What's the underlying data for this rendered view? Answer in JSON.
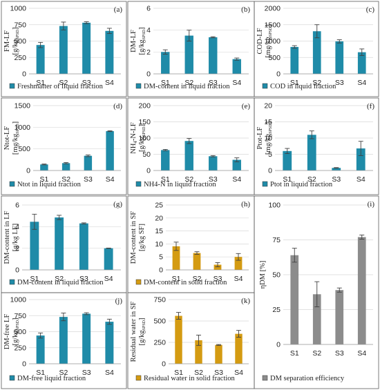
{
  "colors": {
    "teal": "#1f8ba8",
    "gold": "#d49b12",
    "gray": "#8c8c8c",
    "error": "#404040",
    "grid": "#d9d9d9",
    "frame": "#5a5a5a"
  },
  "chart_data": [
    {
      "id": "a",
      "type": "bar",
      "panel_label": "(a)",
      "categories": [
        "S1",
        "S2",
        "S3",
        "S4"
      ],
      "values": [
        440,
        730,
        780,
        655
      ],
      "errors": [
        40,
        60,
        15,
        40
      ],
      "ylabel": "FM-LF",
      "yunit": "[g/kg",
      "yunit_sub": "SPSD",
      "yunit_close": "]",
      "ylim": [
        0,
        1000
      ],
      "yticks": [
        "0",
        "250",
        "500",
        "750",
        "1000"
      ],
      "legend": "Freshmatter of liquid fraction",
      "color": "teal"
    },
    {
      "id": "b",
      "type": "bar",
      "panel_label": "(b)",
      "categories": [
        "S1",
        "S2",
        "S3",
        "S4"
      ],
      "values": [
        2.0,
        3.5,
        3.35,
        1.35
      ],
      "errors": [
        0.2,
        0.5,
        0.05,
        0.1
      ],
      "ylabel": "DM-LF",
      "yunit": "[g/kg",
      "yunit_sub": "SPSD",
      "yunit_close": "]",
      "ylim": [
        0,
        6
      ],
      "yticks": [
        "0",
        "2",
        "4",
        "6"
      ],
      "legend": "DM-content in liquid fraction",
      "color": "teal"
    },
    {
      "id": "c",
      "type": "bar",
      "panel_label": "(c)",
      "categories": [
        "S1",
        "S2",
        "S3",
        "S4"
      ],
      "values": [
        820,
        1300,
        990,
        660
      ],
      "errors": [
        40,
        200,
        50,
        100
      ],
      "ylabel": "COD-LF",
      "yunit": "[mg/kg",
      "yunit_sub": "SPSD",
      "yunit_close": "]",
      "ylim": [
        0,
        2000
      ],
      "yticks": [
        "0",
        "500",
        "1000",
        "1500",
        "2000"
      ],
      "legend": "COD in liquid fraction",
      "color": "teal"
    },
    {
      "id": "d",
      "type": "bar",
      "panel_label": "(d)",
      "categories": [
        "S1",
        "S2",
        "S3",
        "S4"
      ],
      "values": [
        140,
        170,
        340,
        910
      ],
      "errors": [
        10,
        15,
        20,
        10
      ],
      "ylabel": "Ntot-LF",
      "yunit": "[mg/kg",
      "yunit_sub": "SPSD",
      "yunit_close": "]",
      "ylim": [
        0,
        1500
      ],
      "yticks": [
        "0",
        "500",
        "1000",
        "1500"
      ],
      "legend": "Ntot in liquid fraction",
      "color": "teal"
    },
    {
      "id": "e",
      "type": "bar",
      "panel_label": "(e)",
      "categories": [
        "S1",
        "S2",
        "S3",
        "S4"
      ],
      "values": [
        63,
        91,
        44,
        33
      ],
      "errors": [
        2,
        8,
        2,
        6
      ],
      "ylabel": "NH",
      "ylabel_sub": "4",
      "ylabel_rest": "-N-LF",
      "yunit": "[g/kg",
      "yunit_sub": "SPSD",
      "yunit_close": "]",
      "ylim": [
        0,
        200
      ],
      "yticks": [
        "0",
        "50",
        "100",
        "150",
        "200"
      ],
      "legend": "NH4-N in liquid fraction",
      "color": "teal"
    },
    {
      "id": "f",
      "type": "bar",
      "panel_label": "(f)",
      "categories": [
        "S1",
        "S2",
        "S3",
        "S4"
      ],
      "values": [
        6.0,
        11.0,
        0.8,
        6.8
      ],
      "errors": [
        0.8,
        1.2,
        0.1,
        2.2
      ],
      "ylabel": "Ptot-LF",
      "yunit": "[mg/kg",
      "yunit_sub": "SPSD",
      "yunit_close": "]",
      "ylim": [
        0,
        20
      ],
      "yticks": [
        "0",
        "5",
        "10",
        "15",
        "20"
      ],
      "legend": "Ptot in liquid fraction",
      "color": "teal"
    },
    {
      "id": "g",
      "type": "bar",
      "panel_label": "(g)",
      "categories": [
        "S1",
        "S2",
        "S3",
        "S4"
      ],
      "values": [
        4.45,
        4.85,
        4.3,
        2.0
      ],
      "errors": [
        0.7,
        0.2,
        0.05,
        0.02
      ],
      "ylabel": "DM-content in LF",
      "yunit": "[g/kg LF]",
      "yunit_sub": "",
      "yunit_close": "",
      "ylim": [
        0,
        6
      ],
      "yticks": [
        "0",
        "2",
        "4",
        "6"
      ],
      "legend": "DM-content in liquid fraction",
      "color": "teal"
    },
    {
      "id": "h",
      "type": "bar",
      "panel_label": "(h)",
      "categories": [
        "S1",
        "S2",
        "S3",
        "S4"
      ],
      "values": [
        9.1,
        6.5,
        2.0,
        5.0
      ],
      "errors": [
        1.6,
        0.5,
        0.8,
        1.3
      ],
      "ylabel": "DM-content in SF",
      "yunit": "[g/kg SF]",
      "yunit_sub": "",
      "yunit_close": "",
      "ylim": [
        0,
        25
      ],
      "yticks": [
        "0",
        "5",
        "10",
        "15",
        "20",
        "25"
      ],
      "legend": "DM-content in solid fraction",
      "color": "gold"
    },
    {
      "id": "i",
      "type": "bar",
      "panel_label": "(i)",
      "categories": [
        "S1",
        "S2",
        "S3",
        "S4"
      ],
      "values": [
        64,
        36,
        39,
        77
      ],
      "errors": [
        5,
        9,
        1.5,
        1.5
      ],
      "ylabel": "ηDM [%]",
      "yunit": "",
      "yunit_sub": "",
      "yunit_close": "",
      "ylim": [
        0,
        100
      ],
      "yticks": [
        "0",
        "25",
        "50",
        "75",
        "100"
      ],
      "legend": "DM separation efficiency",
      "color": "gray"
    },
    {
      "id": "j",
      "type": "bar",
      "panel_label": "(j)",
      "categories": [
        "S1",
        "S2",
        "S3",
        "S4"
      ],
      "values": [
        440,
        730,
        780,
        655
      ],
      "errors": [
        40,
        60,
        15,
        40
      ],
      "ylabel": "DM-free LF",
      "yunit": "[g/kg",
      "yunit_sub": "SPSD",
      "yunit_close": "]",
      "ylim": [
        0,
        1000
      ],
      "yticks": [
        "0",
        "250",
        "500",
        "750",
        "1000"
      ],
      "legend": "DM-free liquid fraction",
      "color": "teal"
    },
    {
      "id": "k",
      "type": "bar",
      "panel_label": "(k)",
      "categories": [
        "S1",
        "S2",
        "S3",
        "S4"
      ],
      "values": [
        560,
        275,
        220,
        350
      ],
      "errors": [
        40,
        60,
        5,
        40
      ],
      "ylabel": "Residual water in SF",
      "yunit": "[g/kg",
      "yunit_sub": "SPSD",
      "yunit_close": "]",
      "ylim": [
        0,
        750
      ],
      "yticks": [
        "0",
        "250",
        "500",
        "750"
      ],
      "legend": "Residual water in solid fraction",
      "color": "gold"
    }
  ]
}
